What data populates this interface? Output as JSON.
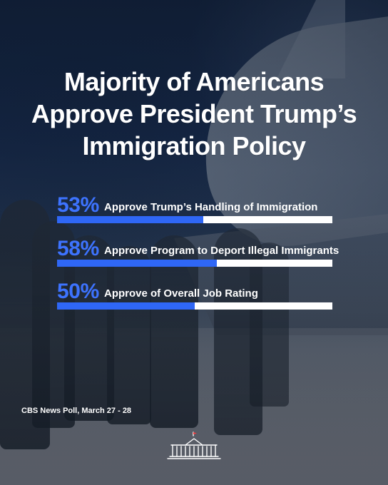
{
  "header": {
    "title_lines": [
      "Majority of Americans",
      "Approve President Trump’s",
      "Immigration Policy"
    ]
  },
  "chart_data": {
    "type": "bar",
    "categories": [
      "Approve Trump’s Handling of Immigration",
      "Approve Program to Deport Illegal Immigrants",
      "Approve of Overall Job Rating"
    ],
    "values": [
      53,
      58,
      50
    ],
    "value_labels": [
      "53%",
      "58%",
      "50%"
    ],
    "xlim": [
      0,
      100
    ],
    "colors": {
      "fill": "#2f67f6",
      "track": "#ffffff",
      "percent": "#3d73ff"
    }
  },
  "footer": {
    "source": "CBS News Poll, March 27 - 28",
    "logo_icon": "white-house-icon"
  }
}
